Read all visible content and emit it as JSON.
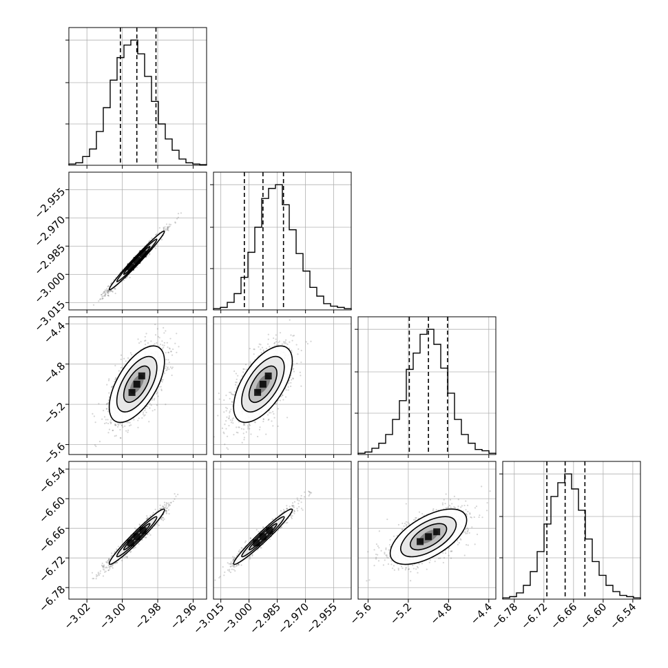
{
  "chart_data": {
    "type": "corner",
    "grid": true,
    "colors": {
      "line": "#000000",
      "grid": "#b0b0b0",
      "points": "#666666",
      "fill_dark": "#000000",
      "fill_light": "#ffffff"
    },
    "parameters": [
      {
        "ticks": [
          "−3.02",
          "−3.00",
          "−2.98",
          "−2.96"
        ],
        "tick_values": [
          -3.02,
          -3.0,
          -2.98,
          -2.96
        ],
        "range": [
          -3.0302,
          -2.9524
        ],
        "histogram": [
          0.01,
          0.02,
          0.07,
          0.13,
          0.27,
          0.46,
          0.68,
          0.86,
          0.96,
          1.0,
          0.89,
          0.71,
          0.51,
          0.33,
          0.21,
          0.12,
          0.05,
          0.02,
          0.01,
          0.005
        ],
        "quantiles": [
          -3.0011,
          -2.9918,
          -2.981
        ]
      },
      {
        "ticks": [
          "−3.015",
          "−3.000",
          "−2.985",
          "−2.970",
          "−2.955"
        ],
        "tick_values": [
          -3.015,
          -3.0,
          -2.985,
          -2.97,
          -2.955
        ],
        "range": [
          -3.0189,
          -2.9457
        ],
        "histogram": [
          0.01,
          0.02,
          0.06,
          0.13,
          0.26,
          0.46,
          0.66,
          0.89,
          0.97,
          1.0,
          0.84,
          0.64,
          0.45,
          0.31,
          0.18,
          0.11,
          0.05,
          0.03,
          0.02,
          0.01
        ],
        "quantiles": [
          -3.0025,
          -2.9926,
          -2.9817
        ]
      },
      {
        "ticks": [
          "−5.6",
          "−5.2",
          "−4.8",
          "−4.4"
        ],
        "tick_values": [
          -5.6,
          -5.2,
          -4.8,
          -4.4
        ],
        "range": [
          -5.699,
          -4.33
        ],
        "histogram": [
          0.01,
          0.02,
          0.05,
          0.09,
          0.16,
          0.28,
          0.43,
          0.68,
          0.81,
          0.96,
          1.0,
          0.88,
          0.69,
          0.49,
          0.28,
          0.16,
          0.09,
          0.04,
          0.03,
          0.01
        ],
        "quantiles": [
          -5.19,
          -5.0,
          -4.81
        ]
      },
      {
        "ticks": [
          "−6.78",
          "−6.72",
          "−6.66",
          "−6.60",
          "−6.54"
        ],
        "tick_values": [
          -6.78,
          -6.72,
          -6.66,
          -6.6,
          -6.54
        ],
        "range": [
          -6.8034,
          -6.5245
        ],
        "histogram": [
          0.01,
          0.02,
          0.05,
          0.11,
          0.22,
          0.38,
          0.6,
          0.82,
          0.93,
          1.0,
          0.88,
          0.71,
          0.48,
          0.3,
          0.19,
          0.11,
          0.06,
          0.03,
          0.02,
          0.01
        ],
        "quantiles": [
          -6.714,
          -6.677,
          -6.637
        ]
      }
    ],
    "pairs": [
      {
        "row": 1,
        "col": 0,
        "rho": 0.985,
        "mean": [
          -2.9918,
          -2.9926
        ],
        "sd": [
          0.0078,
          0.0078
        ]
      },
      {
        "row": 2,
        "col": 0,
        "rho": 0.6,
        "mean": [
          -2.9918,
          -5.0
        ],
        "sd": [
          0.0078,
          0.19
        ]
      },
      {
        "row": 2,
        "col": 1,
        "rho": 0.6,
        "mean": [
          -2.9926,
          -5.0
        ],
        "sd": [
          0.0078,
          0.19
        ]
      },
      {
        "row": 3,
        "col": 0,
        "rho": 0.97,
        "mean": [
          -2.9918,
          -6.677
        ],
        "sd": [
          0.0078,
          0.028
        ]
      },
      {
        "row": 3,
        "col": 1,
        "rho": 0.97,
        "mean": [
          -2.9926,
          -6.677
        ],
        "sd": [
          0.0078,
          0.028
        ]
      },
      {
        "row": 3,
        "col": 2,
        "rho": 0.6,
        "mean": [
          -5.0,
          -6.677
        ],
        "sd": [
          0.19,
          0.028
        ]
      }
    ]
  }
}
